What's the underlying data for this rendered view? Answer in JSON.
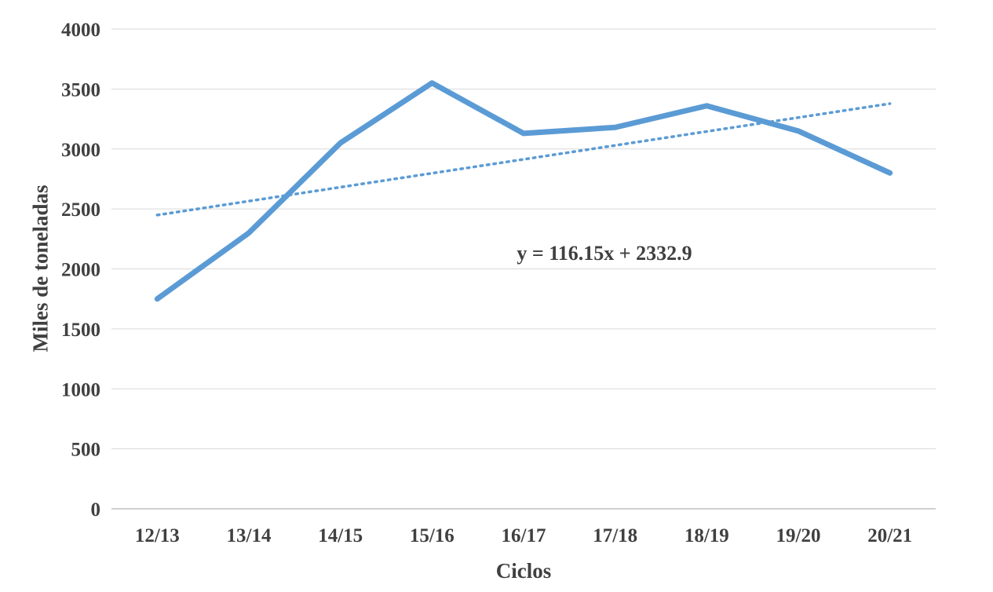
{
  "chart_data": {
    "type": "line",
    "title": "",
    "categories": [
      "12/13",
      "13/14",
      "14/15",
      "15/16",
      "16/17",
      "17/18",
      "18/19",
      "19/20",
      "20/21"
    ],
    "series": [
      {
        "name": "Miles de toneladas",
        "values": [
          1750,
          2300,
          3050,
          3550,
          3130,
          3180,
          3360,
          3150,
          2800
        ],
        "color": "#5B9BD5",
        "style": "solid"
      }
    ],
    "trendline": {
      "label": "y = 116.15x + 2332.9",
      "slope": 116.15,
      "intercept": 2332.9,
      "x_start_index": 1,
      "color": "#5B9BD5",
      "style": "dotted"
    },
    "xlabel": "Ciclos",
    "ylabel": "Miles de toneladas",
    "ylim": [
      0,
      4000
    ],
    "ytick_step": 500,
    "grid": true,
    "legend": "none"
  },
  "colors": {
    "line": "#5B9BD5",
    "grid": "#D9D9D9",
    "axis": "#BFBFBF",
    "text": "#404040",
    "background": "#FFFFFF"
  }
}
